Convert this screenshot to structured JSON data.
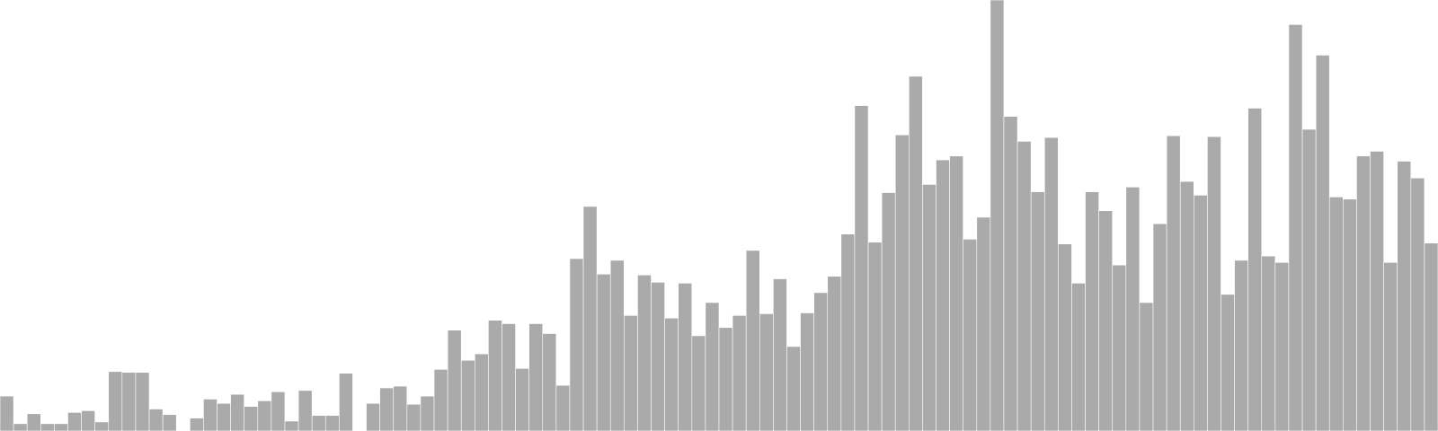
{
  "chart_data": {
    "type": "bar",
    "title": "",
    "xlabel": "",
    "ylabel": "",
    "ylim": [
      0,
      100
    ],
    "grid": false,
    "legend": "none",
    "bar_color": "#aaaaaa",
    "bar_edge_color": "#ffffff",
    "values": [
      8.1,
      1.7,
      4.0,
      1.7,
      1.7,
      4.3,
      4.7,
      2.1,
      13.8,
      13.6,
      13.6,
      5.1,
      3.8,
      0.0,
      3.0,
      7.4,
      6.4,
      8.5,
      5.7,
      7.0,
      9.1,
      2.3,
      9.4,
      3.6,
      3.6,
      13.4,
      0.0,
      6.4,
      10.0,
      10.4,
      6.2,
      8.1,
      14.3,
      23.4,
      16.4,
      17.9,
      25.7,
      24.9,
      14.5,
      24.9,
      22.6,
      10.6,
      40.0,
      52.1,
      36.4,
      39.6,
      26.8,
      36.2,
      34.5,
      26.2,
      34.3,
      22.1,
      29.8,
      24.0,
      26.8,
      41.9,
      27.2,
      35.3,
      19.6,
      27.4,
      32.1,
      35.9,
      45.7,
      75.5,
      43.8,
      55.3,
      68.7,
      82.3,
      57.2,
      62.9,
      63.8,
      44.5,
      49.6,
      100.0,
      73.0,
      67.2,
      55.5,
      68.1,
      43.4,
      34.3,
      55.5,
      51.1,
      38.5,
      56.6,
      29.8,
      48.1,
      68.5,
      57.9,
      54.7,
      68.3,
      31.7,
      39.6,
      74.9,
      40.6,
      39.1,
      94.3,
      70.0,
      87.2,
      54.3,
      53.8,
      63.8,
      64.9,
      39.1,
      62.6,
      58.7,
      43.6
    ]
  }
}
